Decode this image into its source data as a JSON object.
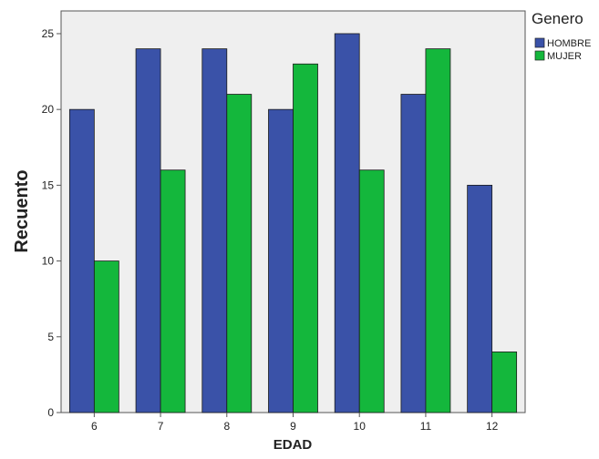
{
  "chart_data": {
    "type": "bar",
    "title": "",
    "xlabel": "EDAD",
    "ylabel": "Recuento",
    "categories": [
      "6",
      "7",
      "8",
      "9",
      "10",
      "11",
      "12"
    ],
    "series": [
      {
        "name": "HOMBRE",
        "color": "#3a52a8",
        "values": [
          20,
          24,
          24,
          20,
          25,
          21,
          15
        ]
      },
      {
        "name": "MUJER",
        "color": "#14b73c",
        "values": [
          10,
          16,
          21,
          23,
          16,
          24,
          4
        ]
      }
    ],
    "ylim": [
      0,
      26.5
    ],
    "yticks": [
      0,
      5,
      10,
      15,
      20,
      25
    ],
    "grid": false,
    "legend": {
      "title": "Genero",
      "placement": "top-right-outside"
    },
    "plot_background": "#efefef"
  }
}
